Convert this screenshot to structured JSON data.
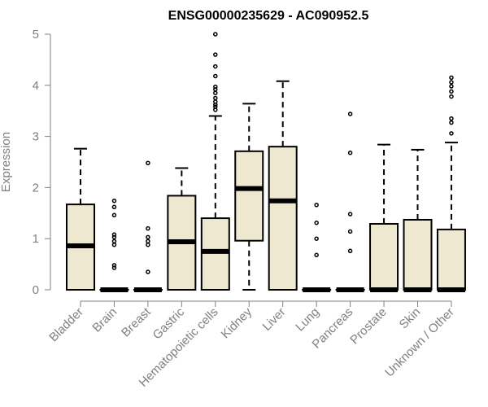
{
  "chart_data": {
    "type": "box",
    "title": "ENSG00000235629 - AC090952.5",
    "xlabel": "",
    "ylabel": "Expression",
    "ylim": [
      0,
      5
    ],
    "yticks": [
      0,
      1,
      2,
      3,
      4,
      5
    ],
    "grid": false,
    "legend": "none",
    "box_fill": "#EFE8D0",
    "outline_color": "#000000",
    "categories": [
      "Bladder",
      "Brain",
      "Breast",
      "Gastric",
      "Hematopoietic cells",
      "Kidney",
      "Liver",
      "Lung",
      "Pancreas",
      "Prostate",
      "Skin",
      "Unknown / Other"
    ],
    "boxes": [
      {
        "category": "Bladder",
        "whisker_low": 0,
        "q1": 0,
        "median": 0.86,
        "q3": 1.67,
        "whisker_high": 2.76,
        "outliers": []
      },
      {
        "category": "Brain",
        "whisker_low": 0,
        "q1": 0,
        "median": 0,
        "q3": 0,
        "whisker_high": 0,
        "outliers": [
          0.43,
          0.48,
          0.88,
          0.95,
          1.03,
          1.08,
          1.46,
          1.62,
          1.74
        ]
      },
      {
        "category": "Breast",
        "whisker_low": 0,
        "q1": 0,
        "median": 0,
        "q3": 0,
        "whisker_high": 0,
        "outliers": [
          0.35,
          0.88,
          0.95,
          1.03,
          1.2,
          2.48
        ]
      },
      {
        "category": "Gastric",
        "whisker_low": 0,
        "q1": 0,
        "median": 0.94,
        "q3": 1.84,
        "whisker_high": 2.38,
        "outliers": []
      },
      {
        "category": "Hematopoietic cells",
        "whisker_low": 0,
        "q1": 0,
        "median": 0.75,
        "q3": 1.4,
        "whisker_high": 3.4,
        "outliers": [
          3.52,
          3.58,
          3.62,
          3.68,
          3.75,
          3.85,
          3.92,
          3.97,
          4.18,
          4.37,
          4.6,
          5.0
        ]
      },
      {
        "category": "Kidney",
        "whisker_low": 0,
        "q1": 0.96,
        "median": 1.98,
        "q3": 2.71,
        "whisker_high": 3.64,
        "outliers": []
      },
      {
        "category": "Liver",
        "whisker_low": 0,
        "q1": 0,
        "median": 1.74,
        "q3": 2.8,
        "whisker_high": 4.08,
        "outliers": []
      },
      {
        "category": "Lung",
        "whisker_low": 0,
        "q1": 0,
        "median": 0,
        "q3": 0,
        "whisker_high": 0,
        "outliers": [
          0.68,
          1.0,
          1.31,
          1.66
        ]
      },
      {
        "category": "Pancreas",
        "whisker_low": 0,
        "q1": 0,
        "median": 0,
        "q3": 0,
        "whisker_high": 0,
        "outliers": [
          0.76,
          1.14,
          1.48,
          2.68,
          3.44
        ]
      },
      {
        "category": "Prostate",
        "whisker_low": 0,
        "q1": 0,
        "median": 0,
        "q3": 1.29,
        "whisker_high": 2.84,
        "outliers": []
      },
      {
        "category": "Skin",
        "whisker_low": 0,
        "q1": 0,
        "median": 0,
        "q3": 1.37,
        "whisker_high": 2.74,
        "outliers": []
      },
      {
        "category": "Unknown / Other",
        "whisker_low": 0,
        "q1": 0,
        "median": 0,
        "q3": 1.18,
        "whisker_high": 2.88,
        "outliers": [
          3.06,
          3.27,
          3.35,
          3.78,
          3.88,
          3.98,
          4.06,
          4.15
        ]
      }
    ]
  }
}
